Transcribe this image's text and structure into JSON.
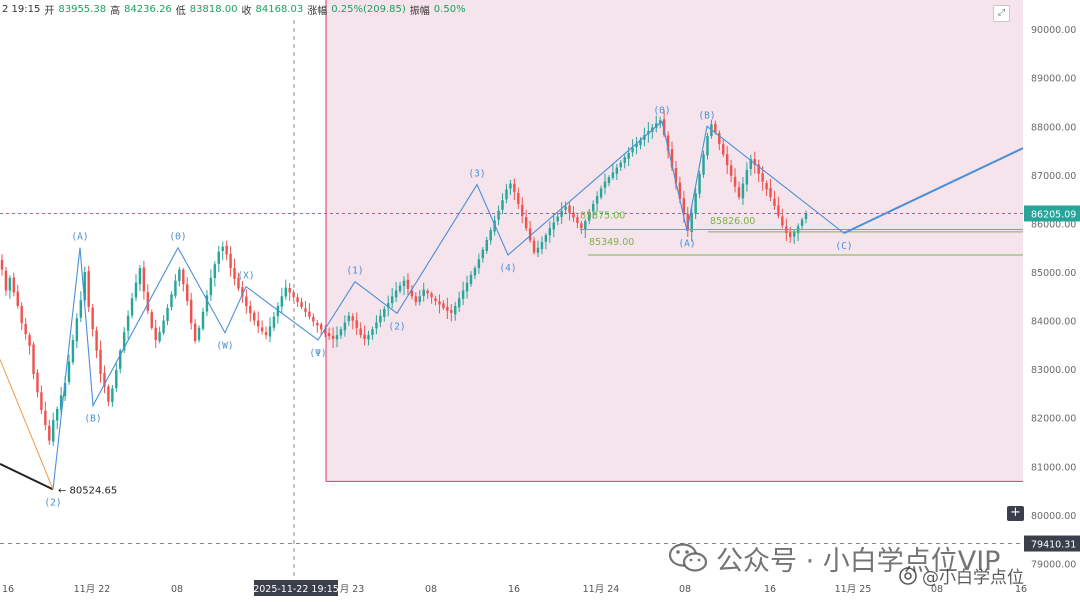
{
  "header": {
    "time": "2 19:15",
    "open_label": "开",
    "open": "83955.38",
    "high_label": "高",
    "high": "84236.26",
    "low_label": "低",
    "low": "83818.00",
    "close_label": "收",
    "close": "84168.03",
    "change_label": "涨幅",
    "change": "0.25%(209.85)",
    "amp_label": "振幅",
    "amp": "0.50%"
  },
  "colors": {
    "up": "#26a69a",
    "down": "#ef5350",
    "wave": "#4a8fd8",
    "support": "#7cb342",
    "box_border": "#e0336e",
    "box_fill": "#f6e4ec",
    "dark_line": "#222222",
    "orange": "#f2994a"
  },
  "watermark": {
    "text": "公众号 · 小白学点位VIP",
    "handle": "@小白学点位",
    "icon": "wechat-icon"
  },
  "chart_data": {
    "type": "candlestick",
    "x_ticks": [
      "16",
      "11月 22",
      "08",
      "2025-11-22 19:15",
      "月 23",
      "08",
      "16",
      "11月 24",
      "08",
      "16",
      "11月 25",
      "08",
      "16"
    ],
    "crosshair_time": "2025-11-22 19:15",
    "y_ticks": [
      79000,
      80000,
      81000,
      82000,
      83000,
      84000,
      85000,
      86000,
      87000,
      88000,
      89000,
      90000
    ],
    "y_tick_labels": [
      "79000.00",
      "80000.00",
      "81000.00",
      "82000.00",
      "83000.00",
      "84000.00",
      "85000.00",
      "86000.00",
      "87000.00",
      "88000.00",
      "89000.00",
      "90000.00"
    ],
    "ylim": [
      78700,
      90600
    ],
    "current_price": "86205.09",
    "crosshair_price": "79410.31",
    "low_marker": "80524.65",
    "support_levels": [
      "85875.00",
      "85826.00",
      "85349.00"
    ],
    "wave_points": [
      {
        "label": "(2)",
        "price": 80524.65
      },
      {
        "label": "(A)",
        "price": 85500
      },
      {
        "label": "(B)",
        "price": 82250
      },
      {
        "label": "(Θ)",
        "price": 85500
      },
      {
        "label": "(W)",
        "price": 83750
      },
      {
        "label": "(X)",
        "price": 84700
      },
      {
        "label": "(Ψ)",
        "price": 83600
      },
      {
        "label": "(1)",
        "price": 84800
      },
      {
        "label": "(2)",
        "price": 84150
      },
      {
        "label": "(3)",
        "price": 86800
      },
      {
        "label": "(4)",
        "price": 85350
      },
      {
        "label": "(Θ)",
        "price": 88100
      },
      {
        "label": "(A)",
        "price": 85850
      },
      {
        "label": "(B)",
        "price": 88000
      },
      {
        "label": "(C)",
        "price": 85800
      }
    ],
    "projection": {
      "from": 85800,
      "to": 87550
    },
    "closes": [
      85050,
      84620,
      84880,
      84580,
      84300,
      83950,
      83720,
      83480,
      82900,
      82520,
      82160,
      81850,
      81530,
      81950,
      82180,
      82460,
      82720,
      83160,
      83600,
      84050,
      84420,
      85000,
      84280,
      83820,
      83380,
      82900,
      82640,
      82330,
      82600,
      82980,
      83380,
      83760,
      84100,
      84460,
      84780,
      85080,
      84600,
      84200,
      83850,
      83600,
      83760,
      84000,
      84260,
      84540,
      84820,
      85050,
      84750,
      84400,
      83950,
      83580,
      83850,
      84180,
      84520,
      84880,
      85160,
      85420,
      85520,
      85360,
      85080,
      84860,
      84660,
      84500,
      84300,
      84150,
      84000,
      83880,
      83780,
      83700,
      83880,
      84080,
      84300,
      84500,
      84680,
      84580,
      84480,
      84380,
      84280,
      84180,
      84080,
      83980,
      83900,
      83820,
      83730,
      83680,
      83620,
      83700,
      83820,
      83960,
      84100,
      84000,
      83850,
      83700,
      83620,
      83700,
      83820,
      83960,
      84100,
      84240,
      84360,
      84500,
      84620,
      84720,
      84820,
      84650,
      84500,
      84380,
      84500,
      84640,
      84560,
      84480,
      84400,
      84330,
      84260,
      84200,
      84160,
      84300,
      84460,
      84620,
      84780,
      84940,
      85080,
      85260,
      85460,
      85660,
      85860,
      86060,
      86260,
      86480,
      86700,
      86820,
      86650,
      86400,
      86150,
      85900,
      85650,
      85400,
      85500,
      85620,
      85760,
      85900,
      86020,
      86140,
      86260,
      86350,
      86220,
      86120,
      86010,
      85900,
      86050,
      86220,
      86400,
      86560,
      86720,
      86860,
      86950,
      87050,
      87150,
      87250,
      87360,
      87450,
      87550,
      87640,
      87720,
      87820,
      87900,
      87980,
      88060,
      88120,
      87820,
      87500,
      87150,
      86820,
      86500,
      86180,
      85850,
      86220,
      86620,
      87020,
      87420,
      87800,
      88040,
      87880,
      87640,
      87420,
      87200,
      86980,
      86760,
      86540,
      86820,
      87100,
      87320,
      87200,
      87020,
      86860,
      86700,
      86540,
      86360,
      86160,
      85960,
      85800,
      85720,
      85820,
      85940,
      86080,
      86205
    ]
  }
}
